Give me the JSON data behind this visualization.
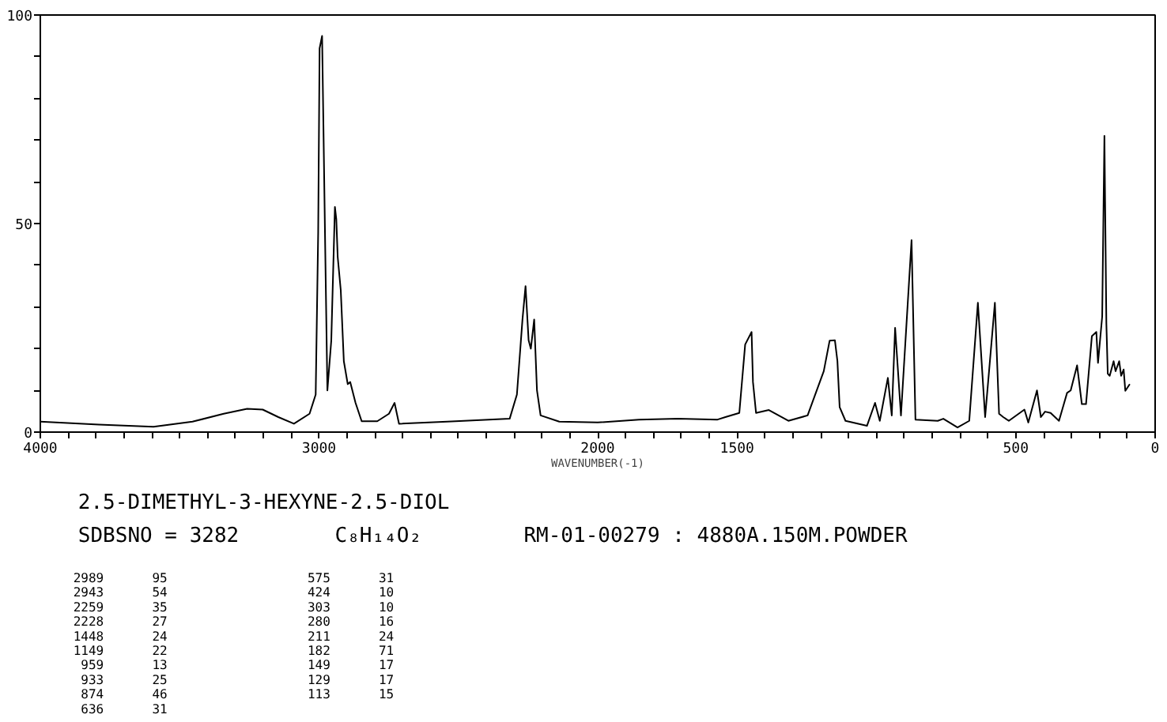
{
  "chart_data": {
    "type": "line",
    "xlabel": "WAVENUMBER(-1)",
    "xlim": [
      4000,
      0
    ],
    "ylim": [
      0,
      100
    ],
    "xticks": [
      4000,
      {
        "value": 3900,
        "label": null
      },
      {
        "value": 3800,
        "label": null
      },
      {
        "value": 3700,
        "label": null
      },
      {
        "value": 3600,
        "label": null
      },
      {
        "value": 3500,
        "label": null
      },
      {
        "value": 3400,
        "label": null
      },
      {
        "value": 3300,
        "label": null
      },
      {
        "value": 3200,
        "label": null
      },
      {
        "value": 3100,
        "label": null
      },
      3000,
      {
        "value": 2900,
        "label": null
      },
      {
        "value": 2800,
        "label": null
      },
      {
        "value": 2700,
        "label": null
      },
      {
        "value": 2600,
        "label": null
      },
      {
        "value": 2500,
        "label": null
      },
      {
        "value": 2400,
        "label": null
      },
      {
        "value": 2300,
        "label": null
      },
      {
        "value": 2200,
        "label": null
      },
      {
        "value": 2100,
        "label": null
      },
      2000,
      {
        "value": 1900,
        "label": null
      },
      {
        "value": 1800,
        "label": null
      },
      {
        "value": 1700,
        "label": null
      },
      {
        "value": 1600,
        "label": null
      },
      1500,
      {
        "value": 1400,
        "label": null
      },
      {
        "value": 1300,
        "label": null
      },
      {
        "value": 1200,
        "label": null
      },
      {
        "value": 1100,
        "label": null
      },
      {
        "value": 1000,
        "label": null
      },
      {
        "value": 900,
        "label": null
      },
      {
        "value": 800,
        "label": null
      },
      {
        "value": 700,
        "label": null
      },
      {
        "value": 600,
        "label": null
      },
      500,
      {
        "value": 400,
        "label": null
      },
      {
        "value": 300,
        "label": null
      },
      {
        "value": 200,
        "label": null
      },
      {
        "value": 100,
        "label": null
      },
      0
    ],
    "yticks": [
      0,
      {
        "value": 10,
        "label": null
      },
      {
        "value": 20,
        "label": null
      },
      {
        "value": 30,
        "label": null
      },
      {
        "value": 40,
        "label": null
      },
      50,
      {
        "value": 60,
        "label": null
      },
      {
        "value": 70,
        "label": null
      },
      {
        "value": 80,
        "label": null
      },
      {
        "value": 90,
        "label": null
      },
      100
    ],
    "grid": false,
    "series": [
      {
        "color": "#000000",
        "x": [
          4000,
          3790,
          3594,
          3454,
          3342,
          3258,
          3202,
          3146,
          3090,
          3034,
          3012,
          3003,
          2998,
          2989,
          2978,
          2970,
          2956,
          2943,
          2938,
          2933,
          2922,
          2911,
          2897,
          2888,
          2869,
          2847,
          2791,
          2749,
          2729,
          2713,
          2540,
          2316,
          2290,
          2270,
          2259,
          2248,
          2240,
          2228,
          2218,
          2205,
          2138,
          2000,
          1852,
          1712,
          1570,
          1542,
          1492,
          1471,
          1448,
          1443,
          1432,
          1386,
          1316,
          1247,
          1189,
          1168,
          1149,
          1140,
          1132,
          1111,
          1034,
          1005,
          988,
          959,
          945,
          933,
          912,
          874,
          860,
          780,
          760,
          709,
          667,
          636,
          610,
          575,
          560,
          545,
          525,
          469,
          455,
          424,
          410,
          395,
          375,
          345,
          316,
          303,
          280,
          263,
          248,
          227,
          211,
          205,
          190,
          182,
          175,
          170,
          163,
          149,
          142,
          129,
          122,
          113,
          107,
          91
        ],
        "values": [
          2.5,
          1.8,
          1.3,
          2.5,
          4.4,
          5.6,
          5.4,
          3.6,
          2.0,
          4.4,
          9,
          48,
          92,
          95,
          45,
          10,
          22,
          54,
          51,
          42,
          34,
          17,
          11.5,
          12,
          7,
          2.6,
          2.6,
          4.4,
          7,
          2,
          2.5,
          3.2,
          9,
          27,
          35,
          22,
          20,
          27,
          10,
          4,
          2.5,
          2.3,
          3.0,
          3.2,
          3.0,
          3.6,
          4.6,
          21,
          24,
          12,
          4.6,
          5.3,
          2.7,
          4.0,
          14.6,
          21.9,
          22,
          17,
          6,
          2.7,
          1.5,
          7,
          2.7,
          13,
          4,
          25,
          4,
          46,
          3,
          2.7,
          3.2,
          1.1,
          2.7,
          31,
          3.6,
          31,
          4.4,
          3.6,
          2.7,
          5.4,
          2.3,
          10,
          3.6,
          4.9,
          4.6,
          2.7,
          9.4,
          10,
          16,
          6.7,
          6.7,
          23,
          24,
          16.6,
          27.7,
          71,
          26,
          14,
          13.5,
          17,
          14.6,
          17,
          13.5,
          15,
          9.9,
          11.5
        ]
      }
    ],
    "annotations": [
      "2.5-DIMETHYL-3-HEXYNE-2.5-DIOL",
      "SDBSNO = 3282",
      "C₈H₁₄O₂",
      "RM-01-00279 : 4880A.150M.POWDER",
      "2989 95",
      "2943 54",
      "2259 35",
      "2228 27",
      "1448 24",
      "1149 22",
      "959 13",
      "933 25",
      "874 46",
      "636 31",
      "575 31",
      "424 10",
      "303 10",
      "280 16",
      "211 24",
      "182 71",
      "149 17",
      "129 17",
      "113 15"
    ]
  }
}
